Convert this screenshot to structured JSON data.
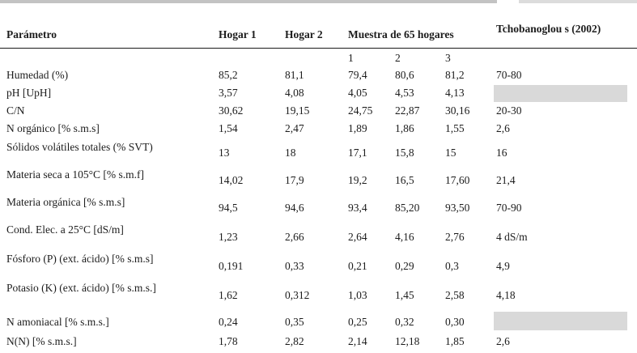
{
  "page": {
    "background": "#ffffff"
  },
  "decor": {
    "top_strip_left_color": "#c3c3c3",
    "top_strip_right_color": "#dcdcdc",
    "rule_color": "#1a1a1a",
    "empty_cell_color": "#d9d9d9"
  },
  "table": {
    "header": {
      "param": "Parámetro",
      "hogar1": "Hogar 1",
      "hogar2": "Hogar 2",
      "muestra": "Muestra de 65 hogares",
      "tchobanoglous": "Tchobanoglou s (2002)",
      "sub": [
        "1",
        "2",
        "3"
      ]
    },
    "rows": [
      {
        "label": "Humedad (%)",
        "kind": "s",
        "values": [
          "85,2",
          "81,1",
          "79,4",
          "80,6",
          "81,2",
          "70-80"
        ]
      },
      {
        "label": "pH [UpH]",
        "kind": "s",
        "values": [
          "3,57",
          "4,08",
          "4,05",
          "4,53",
          "4,13",
          null
        ]
      },
      {
        "label": "C/N",
        "kind": "s",
        "values": [
          "30,62",
          "19,15",
          "24,75",
          "22,87",
          "30,16",
          "20-30"
        ]
      },
      {
        "label": "N orgánico [% s.m.s]",
        "kind": "s",
        "values": [
          "1,54",
          "2,47",
          "1,89",
          "1,86",
          "1,55",
          "2,6"
        ]
      },
      {
        "label": "Sólidos volátiles totales (% SVT)",
        "kind": "t",
        "values": [
          "13",
          "18",
          "17,1",
          "15,8",
          "15",
          "16"
        ]
      },
      {
        "label": "Materia seca a 105°C [% s.m.f]",
        "kind": "t",
        "values": [
          "14,02",
          "17,9",
          "19,2",
          "16,5",
          "17,60",
          "21,4"
        ]
      },
      {
        "label": "Materia orgánica [% s.m.s]",
        "kind": "t",
        "values": [
          "94,5",
          "94,6",
          "93,4",
          "85,20",
          "93,50",
          "70-90"
        ]
      },
      {
        "label": "Cond. Elec. a 25°C [dS/m]",
        "kind": "t2",
        "values": [
          "1,23",
          "2,66",
          "2,64",
          "4,16",
          "2,76",
          "4 dS/m"
        ]
      },
      {
        "label": "Fósforo (P) (ext. ácido) [% s.m.s]",
        "kind": "t2",
        "values": [
          "0,191",
          "0,33",
          "0,21",
          "0,29",
          "0,3",
          "4,9"
        ]
      },
      {
        "label": "Potasio (K) (ext. ácido) [% s.m.s.]",
        "kind": "t2",
        "values": [
          "1,62",
          "0,312",
          "1,03",
          "1,45",
          "2,58",
          "4,18"
        ]
      },
      {
        "label": "N amoniacal [% s.m.s.]",
        "kind": "b",
        "values": [
          "0,24",
          "0,35",
          "0,25",
          "0,32",
          "0,30",
          null
        ]
      },
      {
        "label": "N(N) [% s.m.s.]",
        "kind": "l",
        "values": [
          "1,78",
          "2,82",
          "2,14",
          "12,18",
          "1,85",
          "2,6"
        ]
      }
    ]
  }
}
